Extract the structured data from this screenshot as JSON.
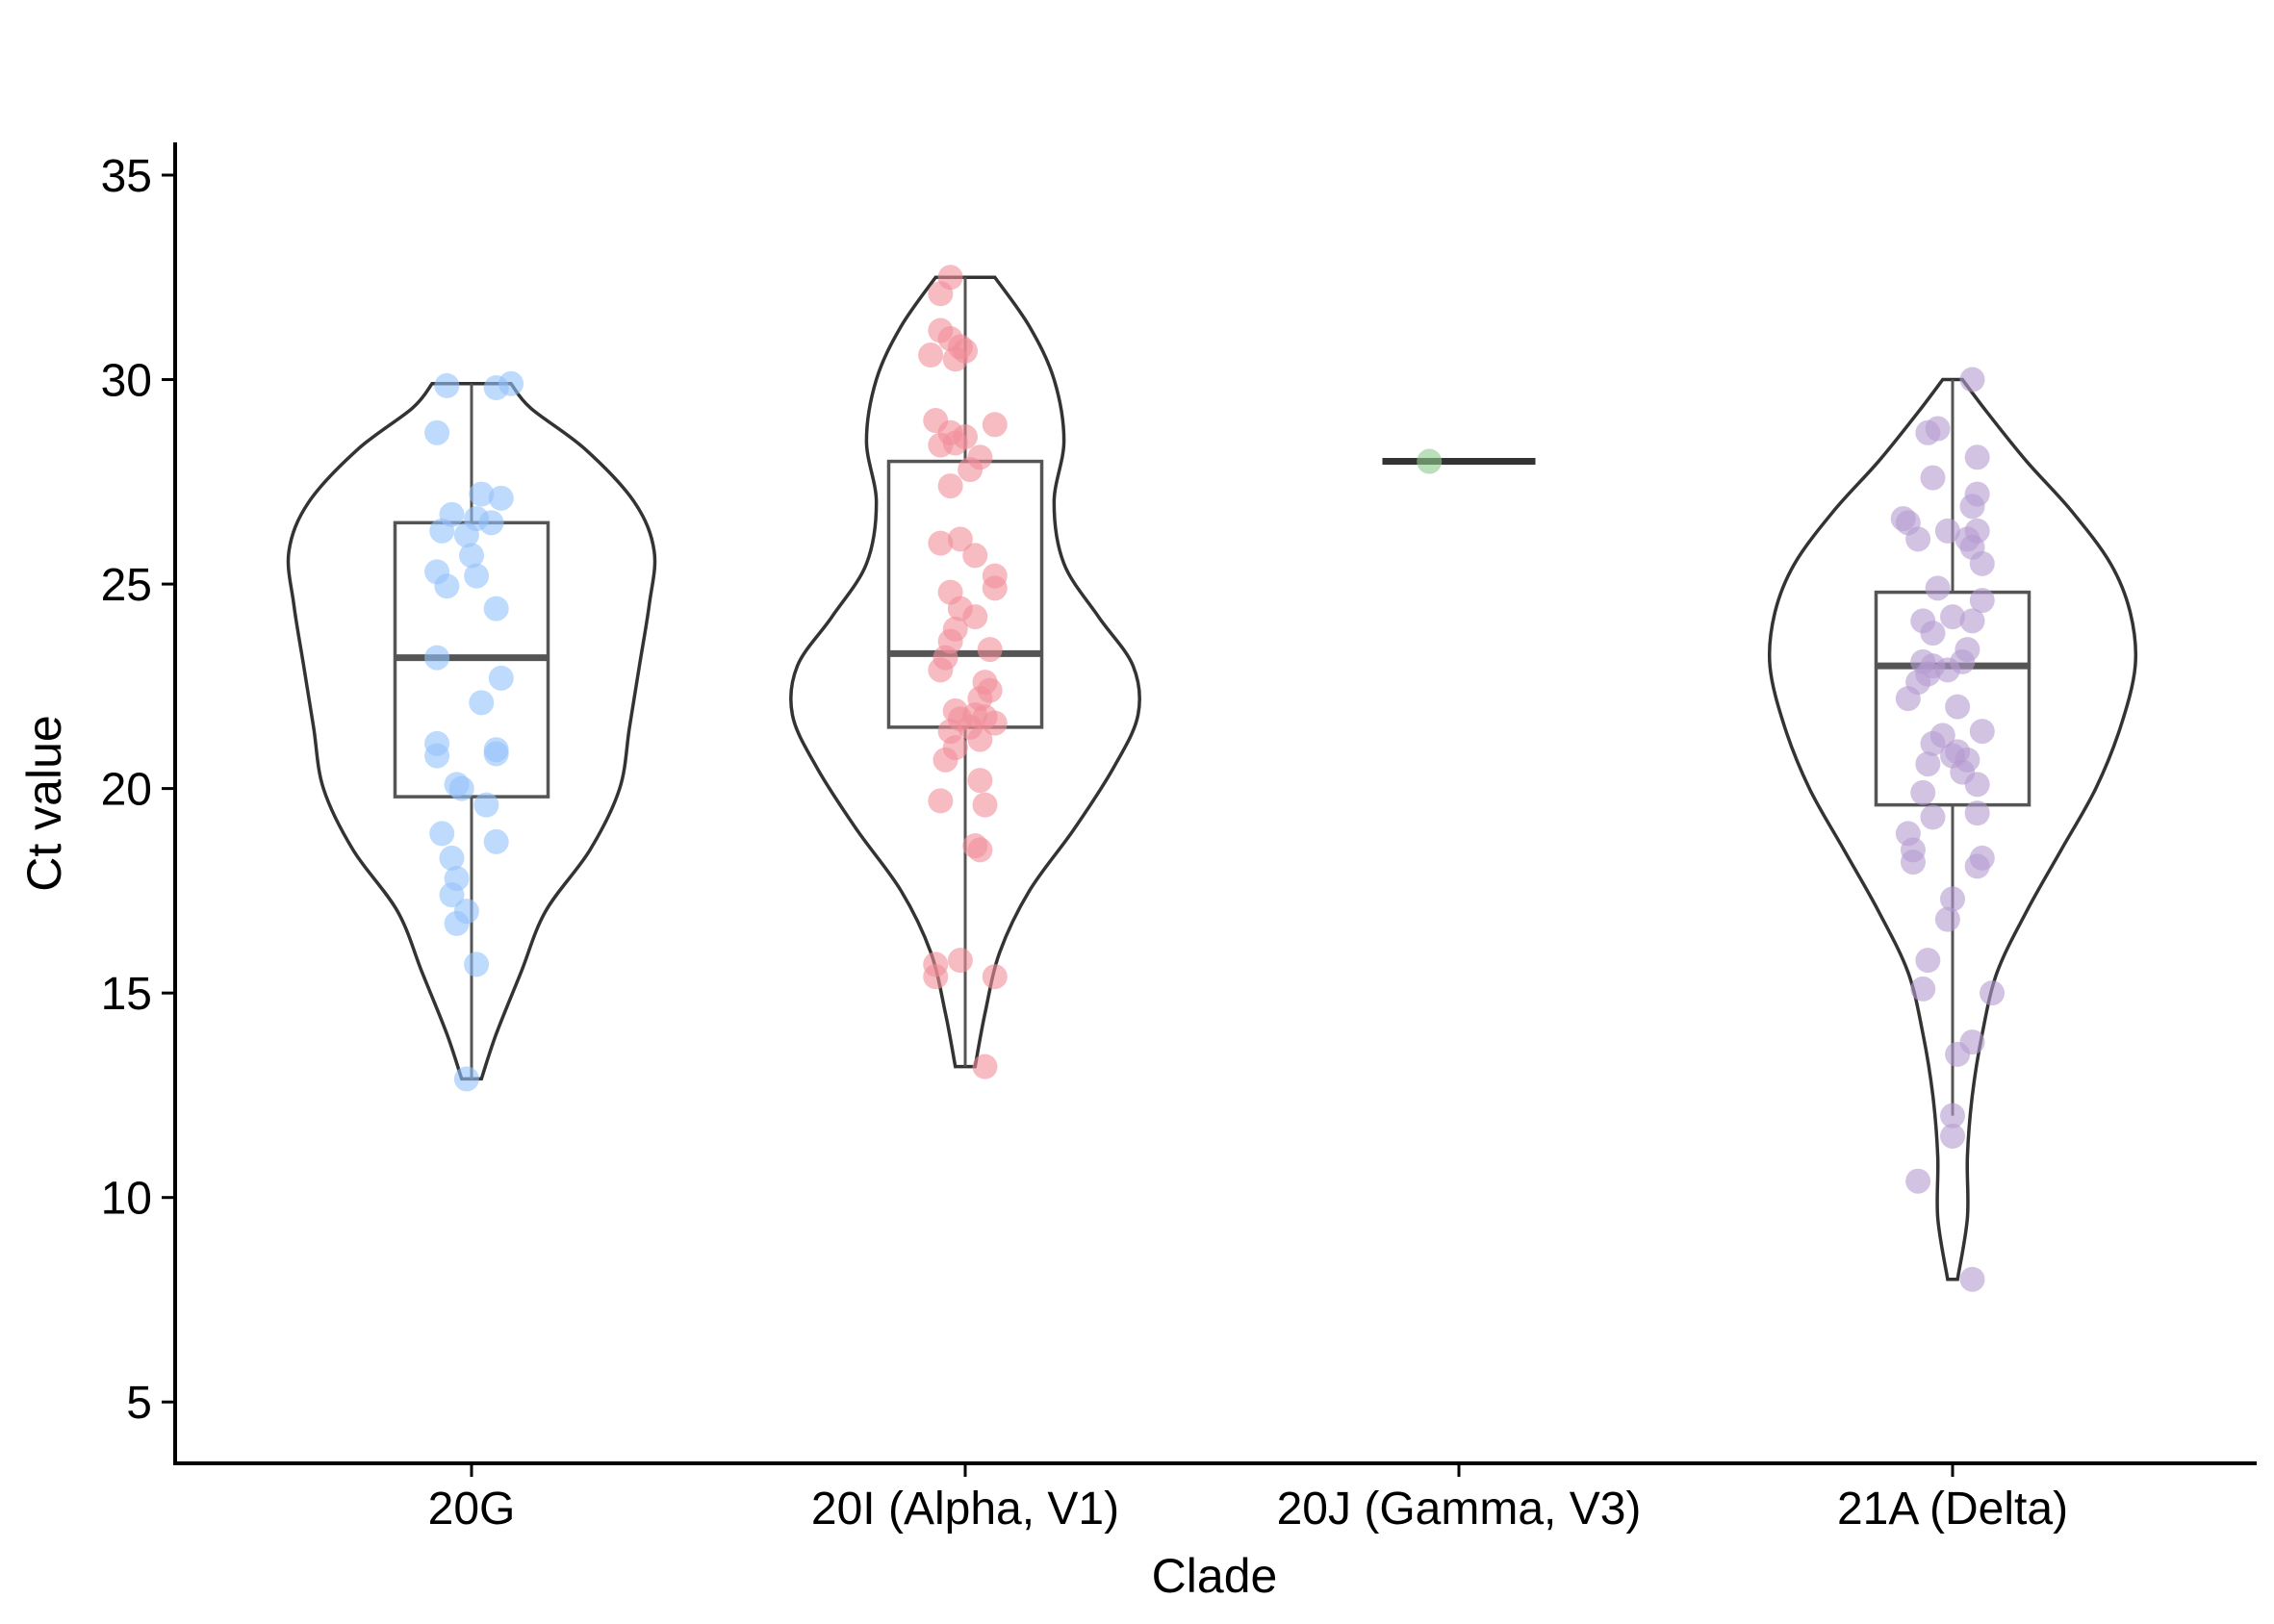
{
  "chart_data": {
    "type": "violin",
    "xlabel": "Clade",
    "ylabel": "Ct value",
    "ylim": [
      3.5,
      35.8
    ],
    "yticks": [
      5,
      10,
      15,
      20,
      25,
      30,
      35
    ],
    "categories": [
      "20G",
      "20I (Alpha, V1)",
      "20J (Gamma, V3)",
      "21A (Delta)"
    ],
    "colors": {
      "20G": "#92C1FA",
      "20I (Alpha, V1)": "#F28E9A",
      "20J (Gamma, V3)": "#8CCB8C",
      "21A (Delta)": "#B59BD0",
      "outline": "#333333",
      "box": "#555555"
    },
    "groups": [
      {
        "clade": "20G",
        "min": 12.9,
        "q1": 19.8,
        "median": 23.2,
        "q3": 26.5,
        "max": 29.9,
        "points": [
          {
            "dx": -0.05,
            "y": 29.85
          },
          {
            "dx": 0.05,
            "y": 29.8
          },
          {
            "dx": 0.08,
            "y": 29.9
          },
          {
            "dx": -0.07,
            "y": 28.7
          },
          {
            "dx": 0.02,
            "y": 27.2
          },
          {
            "dx": 0.06,
            "y": 27.1
          },
          {
            "dx": -0.04,
            "y": 26.7
          },
          {
            "dx": 0.01,
            "y": 26.6
          },
          {
            "dx": 0.04,
            "y": 26.5
          },
          {
            "dx": -0.06,
            "y": 26.3
          },
          {
            "dx": -0.01,
            "y": 26.2
          },
          {
            "dx": 0.0,
            "y": 25.7
          },
          {
            "dx": -0.07,
            "y": 25.3
          },
          {
            "dx": -0.05,
            "y": 24.95
          },
          {
            "dx": 0.01,
            "y": 25.2
          },
          {
            "dx": 0.05,
            "y": 24.4
          },
          {
            "dx": -0.07,
            "y": 23.2
          },
          {
            "dx": 0.06,
            "y": 22.7
          },
          {
            "dx": 0.02,
            "y": 22.1
          },
          {
            "dx": -0.07,
            "y": 21.1
          },
          {
            "dx": -0.07,
            "y": 20.8
          },
          {
            "dx": 0.05,
            "y": 20.95
          },
          {
            "dx": 0.05,
            "y": 20.85
          },
          {
            "dx": -0.03,
            "y": 20.1
          },
          {
            "dx": -0.02,
            "y": 20.0
          },
          {
            "dx": 0.03,
            "y": 19.6
          },
          {
            "dx": -0.06,
            "y": 18.9
          },
          {
            "dx": -0.04,
            "y": 18.3
          },
          {
            "dx": 0.05,
            "y": 18.7
          },
          {
            "dx": -0.03,
            "y": 17.8
          },
          {
            "dx": -0.04,
            "y": 17.4
          },
          {
            "dx": -0.01,
            "y": 17.0
          },
          {
            "dx": -0.03,
            "y": 16.7
          },
          {
            "dx": 0.01,
            "y": 15.7
          },
          {
            "dx": -0.01,
            "y": 12.9
          }
        ],
        "density": [
          [
            12.9,
            0.02
          ],
          [
            14,
            0.05
          ],
          [
            15.5,
            0.1
          ],
          [
            17,
            0.15
          ],
          [
            18.5,
            0.24
          ],
          [
            20,
            0.3
          ],
          [
            21.5,
            0.32
          ],
          [
            23,
            0.34
          ],
          [
            24.5,
            0.36
          ],
          [
            25.8,
            0.37
          ],
          [
            27,
            0.33
          ],
          [
            28.3,
            0.23
          ],
          [
            29.3,
            0.12
          ],
          [
            29.9,
            0.08
          ]
        ]
      },
      {
        "clade": "20I (Alpha, V1)",
        "min": 13.2,
        "q1": 21.5,
        "median": 23.3,
        "q3": 28.0,
        "max": 32.5,
        "points": [
          {
            "dx": -0.03,
            "y": 32.5
          },
          {
            "dx": -0.05,
            "y": 32.1
          },
          {
            "dx": -0.05,
            "y": 31.2
          },
          {
            "dx": -0.03,
            "y": 31.0
          },
          {
            "dx": -0.01,
            "y": 30.8
          },
          {
            "dx": -0.07,
            "y": 30.6
          },
          {
            "dx": 0.0,
            "y": 30.7
          },
          {
            "dx": -0.02,
            "y": 30.5
          },
          {
            "dx": -0.06,
            "y": 29.0
          },
          {
            "dx": 0.06,
            "y": 28.9
          },
          {
            "dx": -0.03,
            "y": 28.7
          },
          {
            "dx": 0.0,
            "y": 28.6
          },
          {
            "dx": -0.05,
            "y": 28.4
          },
          {
            "dx": -0.02,
            "y": 28.45
          },
          {
            "dx": 0.03,
            "y": 28.1
          },
          {
            "dx": 0.01,
            "y": 27.8
          },
          {
            "dx": -0.03,
            "y": 27.4
          },
          {
            "dx": -0.05,
            "y": 26.0
          },
          {
            "dx": -0.01,
            "y": 26.1
          },
          {
            "dx": 0.02,
            "y": 25.7
          },
          {
            "dx": 0.06,
            "y": 25.2
          },
          {
            "dx": -0.03,
            "y": 24.8
          },
          {
            "dx": 0.06,
            "y": 24.9
          },
          {
            "dx": -0.01,
            "y": 24.4
          },
          {
            "dx": 0.02,
            "y": 24.2
          },
          {
            "dx": -0.02,
            "y": 23.9
          },
          {
            "dx": -0.03,
            "y": 23.6
          },
          {
            "dx": 0.05,
            "y": 23.4
          },
          {
            "dx": -0.04,
            "y": 23.2
          },
          {
            "dx": -0.05,
            "y": 22.9
          },
          {
            "dx": 0.04,
            "y": 22.6
          },
          {
            "dx": 0.05,
            "y": 22.4
          },
          {
            "dx": 0.03,
            "y": 22.2
          },
          {
            "dx": -0.02,
            "y": 21.9
          },
          {
            "dx": 0.02,
            "y": 21.8
          },
          {
            "dx": 0.04,
            "y": 21.75
          },
          {
            "dx": -0.01,
            "y": 21.7
          },
          {
            "dx": 0.06,
            "y": 21.6
          },
          {
            "dx": 0.01,
            "y": 21.5
          },
          {
            "dx": -0.03,
            "y": 21.4
          },
          {
            "dx": 0.03,
            "y": 21.2
          },
          {
            "dx": -0.02,
            "y": 21.0
          },
          {
            "dx": -0.04,
            "y": 20.7
          },
          {
            "dx": 0.03,
            "y": 20.2
          },
          {
            "dx": -0.05,
            "y": 19.7
          },
          {
            "dx": 0.04,
            "y": 19.6
          },
          {
            "dx": 0.02,
            "y": 18.6
          },
          {
            "dx": 0.03,
            "y": 18.5
          },
          {
            "dx": -0.06,
            "y": 15.7
          },
          {
            "dx": -0.01,
            "y": 15.8
          },
          {
            "dx": -0.06,
            "y": 15.4
          },
          {
            "dx": 0.06,
            "y": 15.4
          },
          {
            "dx": 0.04,
            "y": 13.2
          }
        ],
        "density": [
          [
            13.2,
            0.02
          ],
          [
            14.5,
            0.04
          ],
          [
            16,
            0.07
          ],
          [
            17.5,
            0.13
          ],
          [
            19,
            0.22
          ],
          [
            20.5,
            0.3
          ],
          [
            21.8,
            0.35
          ],
          [
            23,
            0.34
          ],
          [
            24.2,
            0.27
          ],
          [
            25.5,
            0.2
          ],
          [
            27,
            0.18
          ],
          [
            28.5,
            0.2
          ],
          [
            30,
            0.18
          ],
          [
            31.3,
            0.13
          ],
          [
            32.5,
            0.06
          ]
        ]
      },
      {
        "clade": "20J (Gamma, V3)",
        "min": 28.0,
        "q1": 28.0,
        "median": 28.0,
        "q3": 28.0,
        "max": 28.0,
        "points": [
          {
            "dx": -0.06,
            "y": 28.0
          }
        ],
        "density": []
      },
      {
        "clade": "21A (Delta)",
        "min": 12.0,
        "q1": 19.6,
        "median": 23.0,
        "q3": 24.8,
        "max": 30.0,
        "points": [
          {
            "dx": 0.04,
            "y": 30.0
          },
          {
            "dx": -0.05,
            "y": 28.7
          },
          {
            "dx": -0.03,
            "y": 28.8
          },
          {
            "dx": 0.05,
            "y": 28.1
          },
          {
            "dx": -0.04,
            "y": 27.6
          },
          {
            "dx": 0.05,
            "y": 27.2
          },
          {
            "dx": 0.04,
            "y": 26.9
          },
          {
            "dx": -0.1,
            "y": 26.6
          },
          {
            "dx": -0.09,
            "y": 26.5
          },
          {
            "dx": -0.01,
            "y": 26.3
          },
          {
            "dx": 0.05,
            "y": 26.3
          },
          {
            "dx": -0.07,
            "y": 26.1
          },
          {
            "dx": 0.03,
            "y": 26.1
          },
          {
            "dx": 0.04,
            "y": 25.9
          },
          {
            "dx": 0.06,
            "y": 25.5
          },
          {
            "dx": -0.03,
            "y": 24.9
          },
          {
            "dx": 0.06,
            "y": 24.6
          },
          {
            "dx": -0.06,
            "y": 24.1
          },
          {
            "dx": 0.0,
            "y": 24.2
          },
          {
            "dx": 0.04,
            "y": 24.1
          },
          {
            "dx": -0.04,
            "y": 23.8
          },
          {
            "dx": 0.03,
            "y": 23.4
          },
          {
            "dx": -0.06,
            "y": 23.1
          },
          {
            "dx": -0.04,
            "y": 23.0
          },
          {
            "dx": 0.02,
            "y": 23.1
          },
          {
            "dx": -0.01,
            "y": 22.9
          },
          {
            "dx": -0.07,
            "y": 22.6
          },
          {
            "dx": -0.05,
            "y": 22.8
          },
          {
            "dx": -0.09,
            "y": 22.2
          },
          {
            "dx": 0.01,
            "y": 22.0
          },
          {
            "dx": 0.06,
            "y": 21.4
          },
          {
            "dx": -0.02,
            "y": 21.3
          },
          {
            "dx": -0.04,
            "y": 21.1
          },
          {
            "dx": 0.01,
            "y": 20.9
          },
          {
            "dx": 0.0,
            "y": 20.8
          },
          {
            "dx": 0.03,
            "y": 20.7
          },
          {
            "dx": -0.05,
            "y": 20.6
          },
          {
            "dx": 0.02,
            "y": 20.4
          },
          {
            "dx": 0.05,
            "y": 20.1
          },
          {
            "dx": -0.06,
            "y": 19.9
          },
          {
            "dx": 0.05,
            "y": 19.4
          },
          {
            "dx": -0.04,
            "y": 19.3
          },
          {
            "dx": -0.09,
            "y": 18.9
          },
          {
            "dx": -0.08,
            "y": 18.5
          },
          {
            "dx": 0.06,
            "y": 18.3
          },
          {
            "dx": -0.08,
            "y": 18.2
          },
          {
            "dx": 0.05,
            "y": 18.1
          },
          {
            "dx": 0.0,
            "y": 17.3
          },
          {
            "dx": -0.01,
            "y": 16.8
          },
          {
            "dx": -0.05,
            "y": 15.8
          },
          {
            "dx": -0.06,
            "y": 15.1
          },
          {
            "dx": 0.08,
            "y": 15.0
          },
          {
            "dx": 0.04,
            "y": 13.8
          },
          {
            "dx": 0.01,
            "y": 13.5
          },
          {
            "dx": 0.0,
            "y": 12.0
          },
          {
            "dx": 0.0,
            "y": 11.5
          },
          {
            "dx": -0.07,
            "y": 10.4
          },
          {
            "dx": 0.04,
            "y": 8.0
          }
        ],
        "density": [
          [
            8.0,
            0.01
          ],
          [
            9.5,
            0.03
          ],
          [
            11,
            0.03
          ],
          [
            12.5,
            0.04
          ],
          [
            14,
            0.06
          ],
          [
            15.5,
            0.09
          ],
          [
            17,
            0.15
          ],
          [
            18.5,
            0.22
          ],
          [
            20,
            0.29
          ],
          [
            21.5,
            0.34
          ],
          [
            23,
            0.37
          ],
          [
            24.3,
            0.36
          ],
          [
            25.5,
            0.32
          ],
          [
            26.8,
            0.24
          ],
          [
            28,
            0.15
          ],
          [
            29.2,
            0.07
          ],
          [
            30.0,
            0.02
          ]
        ]
      }
    ]
  }
}
